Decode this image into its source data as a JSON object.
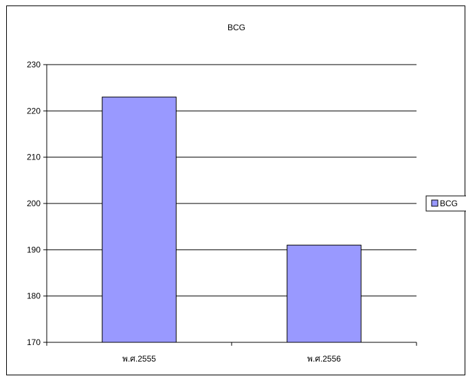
{
  "chart_data": {
    "type": "bar",
    "title": "BCG",
    "categories": [
      "พ.ศ.2555",
      "พ.ศ.2556"
    ],
    "series": [
      {
        "name": "BCG",
        "values": [
          223,
          191
        ],
        "color": "#9999FF"
      }
    ],
    "ylim": [
      170,
      230
    ],
    "yticks": [
      170,
      180,
      190,
      200,
      210,
      220,
      230
    ],
    "grid": true,
    "legend_position": "right"
  }
}
